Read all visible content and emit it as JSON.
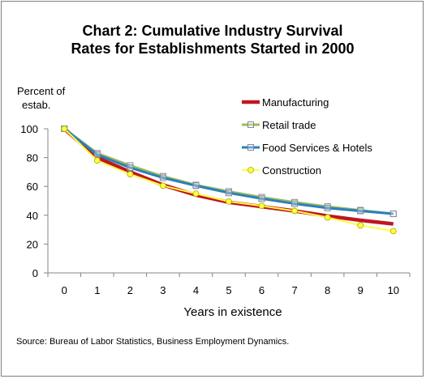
{
  "chart_data": {
    "type": "line",
    "title_lines": [
      "Chart 2: Cumulative Industry Survival",
      "Rates for Establishments Started in 2000"
    ],
    "ylabel_lines": [
      "Percent of",
      "estab."
    ],
    "xlabel": "Years in existence",
    "x": [
      0,
      1,
      2,
      3,
      4,
      5,
      6,
      7,
      8,
      9,
      10
    ],
    "ylim": [
      0,
      100
    ],
    "yticks": [
      0,
      20,
      40,
      60,
      80,
      100
    ],
    "grid": false,
    "legend_position": "right",
    "series": [
      {
        "name": "Manufacturing",
        "color": "#c0161f",
        "marker": "none",
        "values": [
          100,
          80,
          70,
          61,
          54,
          49,
          46,
          43,
          39.5,
          36.5,
          34
        ]
      },
      {
        "name": "Retail trade",
        "color": "#9bbb59",
        "marker": "square",
        "values": [
          100,
          83,
          74.5,
          67,
          61,
          56.5,
          52.5,
          49,
          46,
          43.5,
          41
        ]
      },
      {
        "name": "Food Services & Hotels",
        "color": "#2a7fbf",
        "marker": "square",
        "values": [
          100,
          82,
          73,
          66,
          60.5,
          55.5,
          51.5,
          48,
          45,
          43,
          41
        ]
      },
      {
        "name": "Construction",
        "color": "#ffff40",
        "marker": "circle",
        "values": [
          100,
          78,
          68.5,
          60.5,
          55,
          49.5,
          46.5,
          43,
          38.5,
          33,
          29
        ]
      }
    ],
    "source": "Source: Bureau of Labor Statistics, Business Employment Dynamics."
  }
}
